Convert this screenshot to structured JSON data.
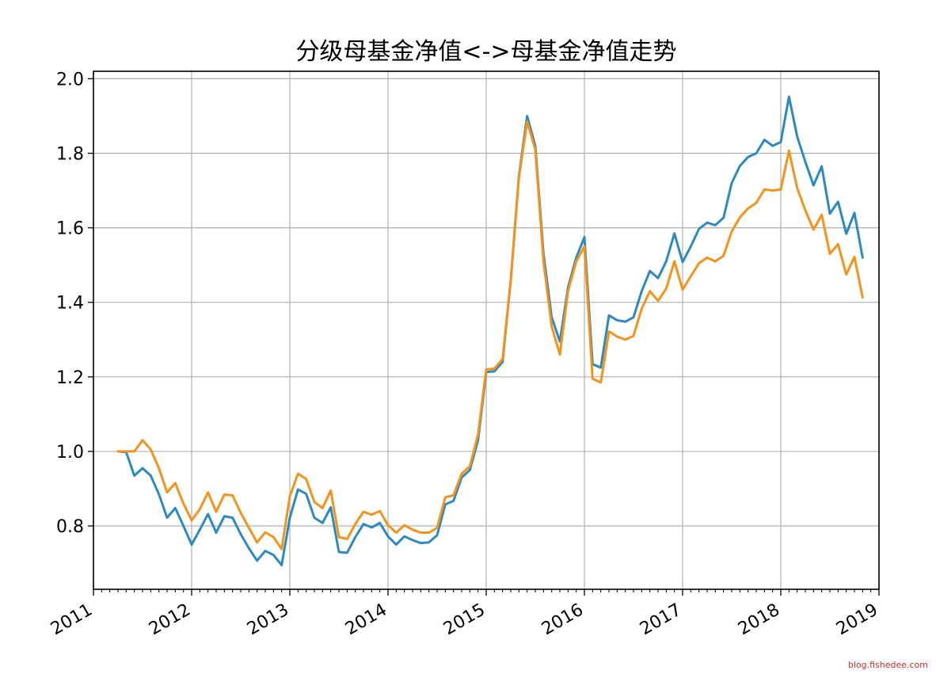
{
  "chart_data": {
    "type": "line",
    "title": "分级母基金净值<->母基金净值走势",
    "xlabel": "",
    "ylabel": "",
    "x_tick_labels": [
      "2011",
      "2012",
      "2013",
      "2014",
      "2015",
      "2016",
      "2017",
      "2018",
      "2019"
    ],
    "y_tick_labels": [
      "0.8",
      "1.0",
      "1.2",
      "1.4",
      "1.6",
      "1.8",
      "2.0"
    ],
    "xlim": [
      "2011-01",
      "2019-01"
    ],
    "ylim": [
      0.63,
      2.02
    ],
    "grid": true,
    "colors": {
      "series1": "#2c8ac0",
      "series2": "#f5921b",
      "grid": "#b0b0b0",
      "axis": "#000000"
    },
    "x": [
      "2011-04",
      "2011-05",
      "2011-06",
      "2011-07",
      "2011-08",
      "2011-09",
      "2011-10",
      "2011-11",
      "2011-12",
      "2012-01",
      "2012-02",
      "2012-03",
      "2012-04",
      "2012-05",
      "2012-06",
      "2012-07",
      "2012-08",
      "2012-09",
      "2012-10",
      "2012-11",
      "2012-12",
      "2013-01",
      "2013-02",
      "2013-03",
      "2013-04",
      "2013-05",
      "2013-06",
      "2013-07",
      "2013-08",
      "2013-09",
      "2013-10",
      "2013-11",
      "2013-12",
      "2014-01",
      "2014-02",
      "2014-03",
      "2014-04",
      "2014-05",
      "2014-06",
      "2014-07",
      "2014-08",
      "2014-09",
      "2014-10",
      "2014-11",
      "2014-12",
      "2015-01",
      "2015-02",
      "2015-03",
      "2015-04",
      "2015-05",
      "2015-06",
      "2015-07",
      "2015-08",
      "2015-09",
      "2015-10",
      "2015-11",
      "2015-12",
      "2016-01",
      "2016-02",
      "2016-03",
      "2016-04",
      "2016-05",
      "2016-06",
      "2016-07",
      "2016-08",
      "2016-09",
      "2016-10",
      "2016-11",
      "2016-12",
      "2017-01",
      "2017-02",
      "2017-03",
      "2017-04",
      "2017-05",
      "2017-06",
      "2017-07",
      "2017-08",
      "2017-09",
      "2017-10",
      "2017-11",
      "2017-12",
      "2018-01",
      "2018-02",
      "2018-03",
      "2018-04",
      "2018-05",
      "2018-06",
      "2018-07",
      "2018-08",
      "2018-09",
      "2018-10",
      "2018-11"
    ],
    "series": [
      {
        "values": [
          1.0,
          0.998,
          0.935,
          0.955,
          0.935,
          0.885,
          0.822,
          0.848,
          0.8,
          0.75,
          0.79,
          0.832,
          0.782,
          0.826,
          0.822,
          0.778,
          0.74,
          0.707,
          0.733,
          0.722,
          0.695,
          0.822,
          0.898,
          0.886,
          0.822,
          0.808,
          0.85,
          0.73,
          0.728,
          0.77,
          0.805,
          0.796,
          0.808,
          0.772,
          0.75,
          0.772,
          0.762,
          0.754,
          0.756,
          0.775,
          0.858,
          0.867,
          0.93,
          0.95,
          1.03,
          1.213,
          1.215,
          1.24,
          1.46,
          1.74,
          1.9,
          1.82,
          1.53,
          1.36,
          1.295,
          1.44,
          1.52,
          1.575,
          1.234,
          1.225,
          1.365,
          1.352,
          1.348,
          1.36,
          1.43,
          1.484,
          1.465,
          1.51,
          1.585,
          1.508,
          1.55,
          1.597,
          1.614,
          1.607,
          1.627,
          1.72,
          1.766,
          1.79,
          1.8,
          1.836,
          1.82,
          1.83,
          1.952,
          1.845,
          1.777,
          1.714,
          1.765,
          1.638,
          1.67,
          1.584,
          1.64,
          1.52
        ]
      },
      {
        "values": [
          1.0,
          1.0,
          1.0,
          1.03,
          1.005,
          0.955,
          0.89,
          0.915,
          0.86,
          0.815,
          0.845,
          0.89,
          0.838,
          0.884,
          0.882,
          0.835,
          0.795,
          0.756,
          0.783,
          0.77,
          0.738,
          0.88,
          0.94,
          0.926,
          0.864,
          0.848,
          0.895,
          0.77,
          0.765,
          0.805,
          0.838,
          0.83,
          0.84,
          0.802,
          0.782,
          0.802,
          0.79,
          0.782,
          0.782,
          0.795,
          0.877,
          0.882,
          0.94,
          0.96,
          1.045,
          1.22,
          1.222,
          1.248,
          1.46,
          1.735,
          1.885,
          1.81,
          1.51,
          1.335,
          1.26,
          1.43,
          1.51,
          1.55,
          1.195,
          1.185,
          1.322,
          1.308,
          1.3,
          1.31,
          1.383,
          1.43,
          1.404,
          1.437,
          1.51,
          1.434,
          1.47,
          1.505,
          1.52,
          1.51,
          1.525,
          1.59,
          1.628,
          1.652,
          1.667,
          1.703,
          1.7,
          1.703,
          1.807,
          1.707,
          1.647,
          1.595,
          1.635,
          1.53,
          1.556,
          1.475,
          1.522,
          1.413
        ]
      }
    ]
  },
  "watermark": "blog.fishedee.com"
}
